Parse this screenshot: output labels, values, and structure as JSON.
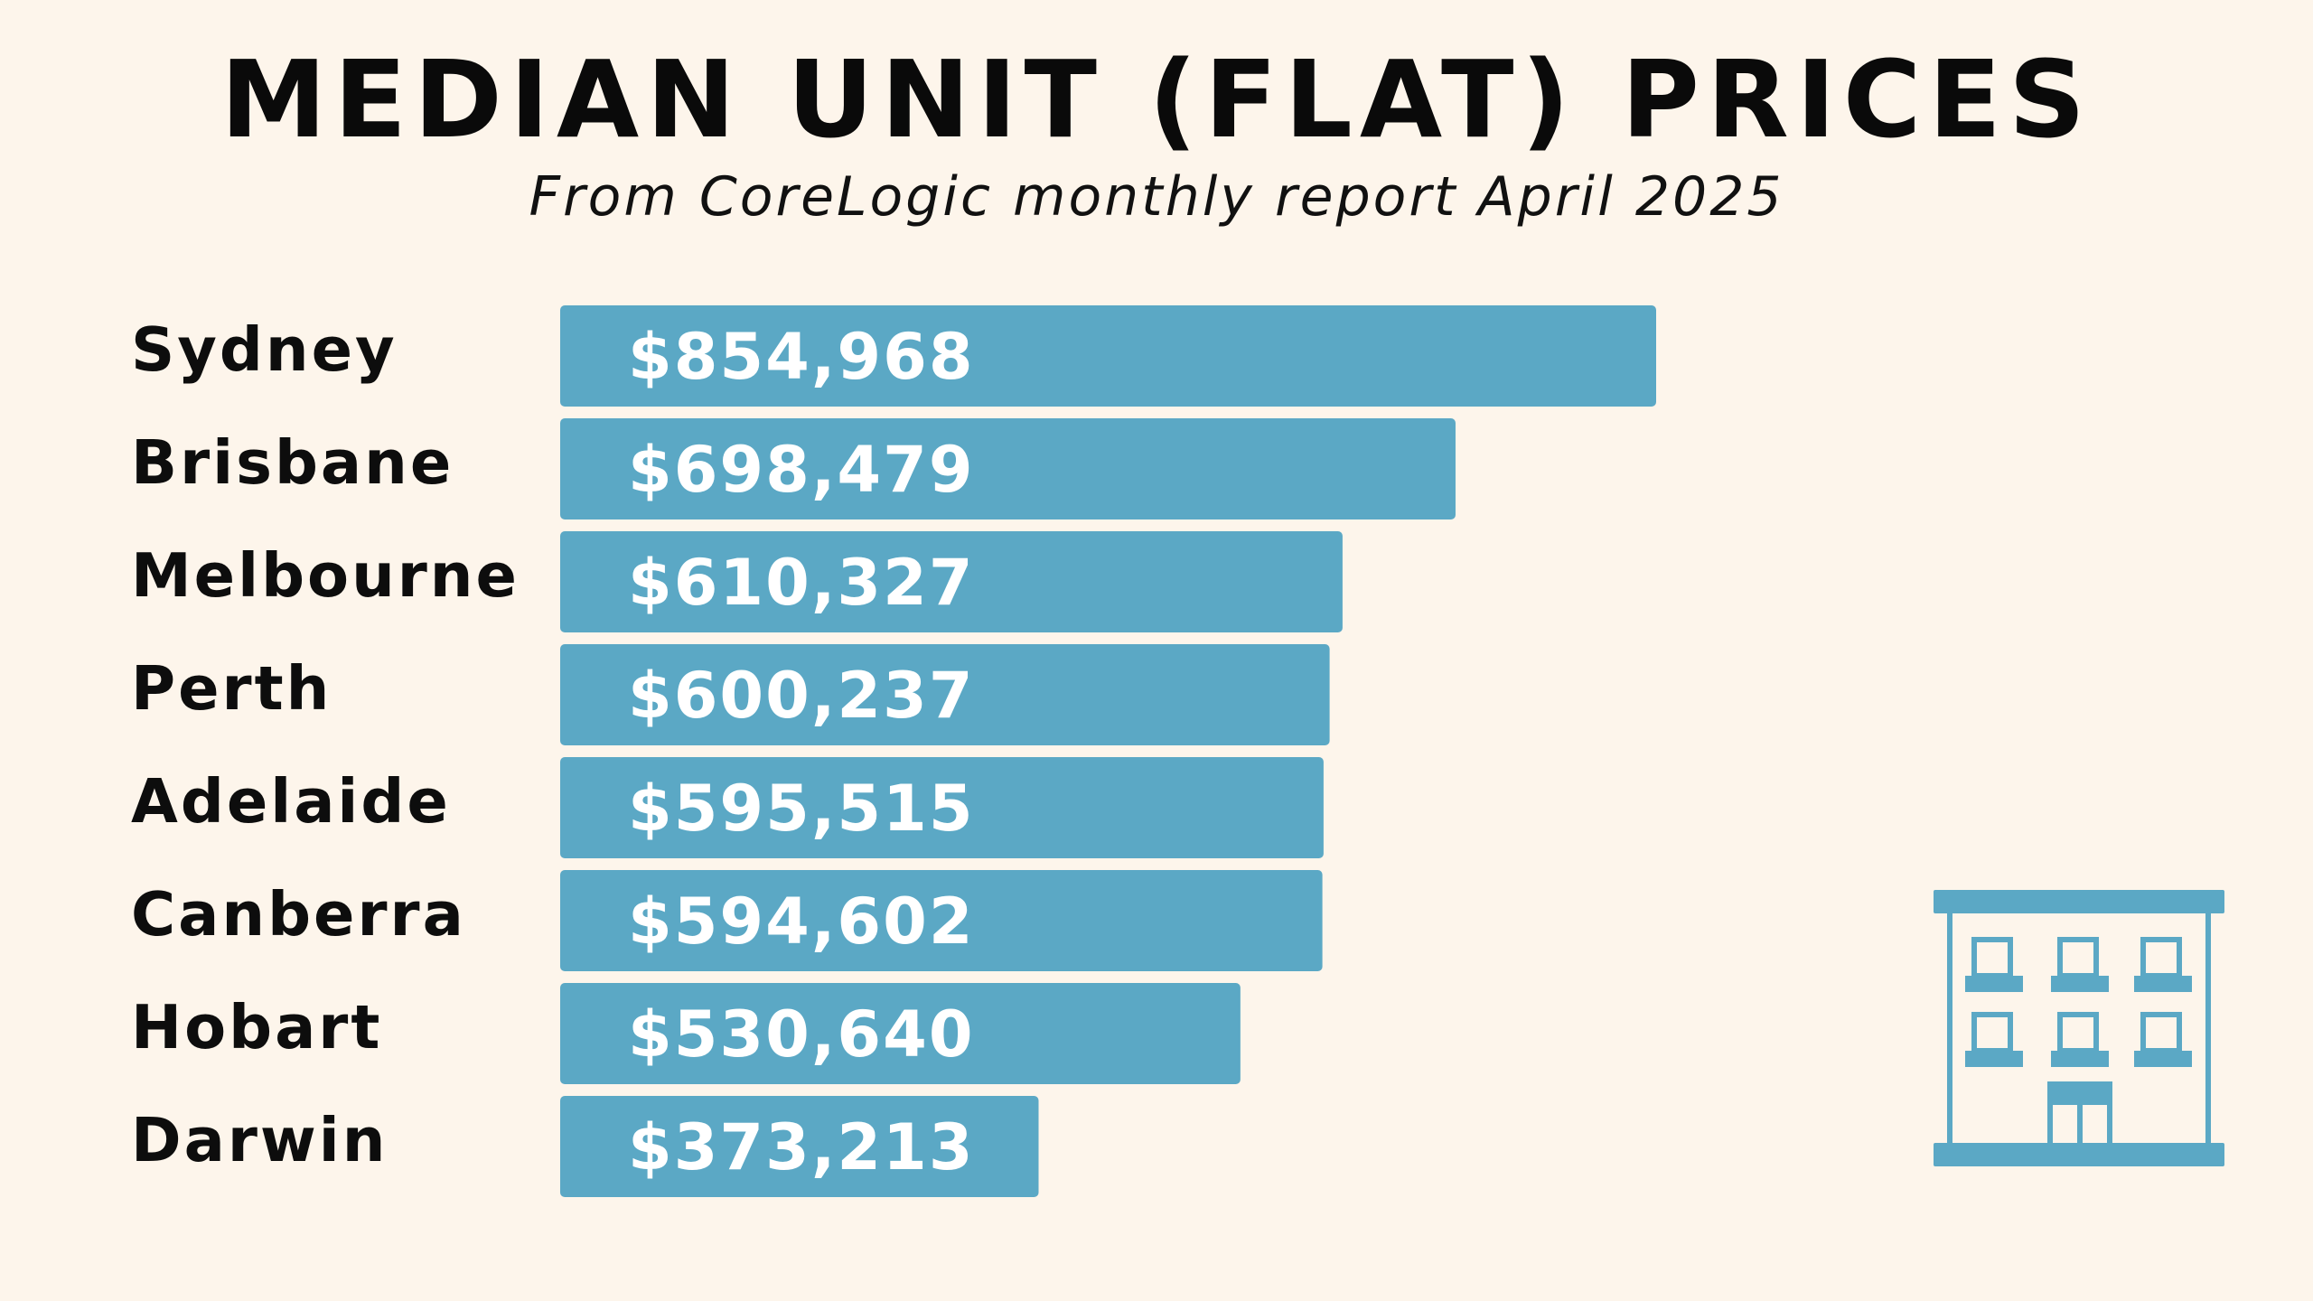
{
  "title": "MEDIAN UNIT (FLAT) PRICES",
  "subtitle": "From CoreLogic monthly report April 2025",
  "icon": "apartment-building-icon",
  "colors": {
    "background": "#FDF5EB",
    "bar": "#5BA8C5",
    "icon": "#5BA8C5",
    "text": "#111111"
  },
  "chart_data": {
    "type": "bar",
    "orientation": "horizontal",
    "categories": [
      "Sydney",
      "Brisbane",
      "Melbourne",
      "Perth",
      "Adelaide",
      "Canberra",
      "Hobart",
      "Darwin"
    ],
    "values": [
      854968,
      698479,
      610327,
      600237,
      595515,
      594602,
      530640,
      373213
    ],
    "value_labels": [
      "$854,968",
      "$698,479",
      "$610,327",
      "$600,237",
      "$595,515",
      "$594,602",
      "$530,640",
      "$373,213"
    ],
    "title": "MEDIAN UNIT (FLAT) PRICES",
    "subtitle": "From CoreLogic monthly report April 2025",
    "xlabel": "",
    "ylabel": "",
    "grid": false,
    "legend": "none"
  }
}
